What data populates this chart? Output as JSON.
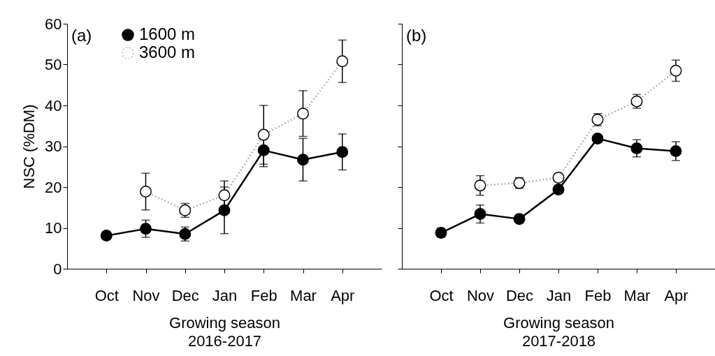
{
  "chart_data": [
    {
      "type": "line",
      "title": "(a)",
      "xlabel": "Growing season\n2016-2017",
      "ylabel": "NSC (%DM)",
      "categories": [
        "Oct",
        "Nov",
        "Dec",
        "Jan",
        "Feb",
        "Mar",
        "Apr"
      ],
      "series": [
        {
          "name": "1600 m",
          "color": "#000000",
          "line_style": "solid",
          "values": [
            8.1,
            9.8,
            8.5,
            14.3,
            29.0,
            26.7,
            28.6
          ],
          "errors": [
            0.8,
            2.1,
            1.7,
            5.7,
            4.0,
            5.2,
            4.4
          ]
        },
        {
          "name": "3600 m",
          "color": "#ffffff",
          "line_style": "dotted",
          "values": [
            null,
            18.9,
            14.3,
            18.0,
            32.8,
            38.0,
            50.8
          ],
          "errors": [
            null,
            4.5,
            1.7,
            3.5,
            7.2,
            5.6,
            5.2
          ]
        }
      ],
      "ylim": [
        0,
        60
      ],
      "yticks": [
        0,
        10,
        20,
        30,
        40,
        50,
        60
      ],
      "grid": false,
      "legend": "top left",
      "marker": "circle"
    },
    {
      "type": "line",
      "title": "(b)",
      "xlabel": "Growing season\n2017-2018",
      "categories": [
        "Oct",
        "Nov",
        "Dec",
        "Jan",
        "Feb",
        "Mar",
        "Apr"
      ],
      "series": [
        {
          "color": "#000000",
          "line_style": "solid",
          "values": [
            8.8,
            13.4,
            12.2,
            19.4,
            31.9,
            29.5,
            28.8
          ],
          "errors": [
            1.1,
            2.2,
            null,
            1.0,
            null,
            2.1,
            2.3
          ]
        },
        {
          "color": "#ffffff",
          "line_style": "dotted",
          "values": [
            null,
            20.4,
            21.0,
            22.3,
            36.5,
            41.0,
            48.5
          ],
          "errors": [
            null,
            2.4,
            1.3,
            1.0,
            1.5,
            1.7,
            2.6
          ]
        }
      ],
      "ylim": [
        0,
        60
      ],
      "yticks": [
        0,
        10,
        20,
        30,
        40,
        50,
        60
      ],
      "grid": false,
      "marker": "circle",
      "tick_labels": "x"
    }
  ]
}
